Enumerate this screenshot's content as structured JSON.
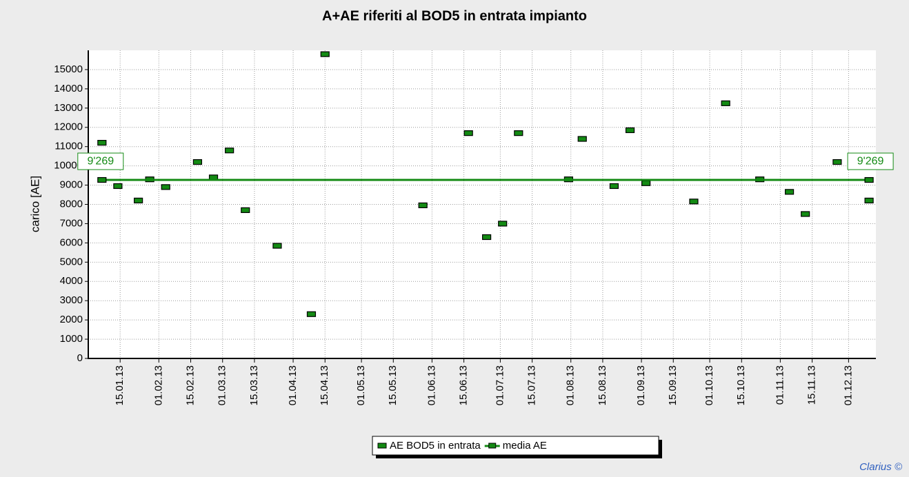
{
  "chart_data": {
    "type": "scatter",
    "title": "A+AE riferiti al BOD5 in entrata impianto",
    "y_label": "carico [AE]",
    "credit": "Clarius ©",
    "xlim": [
      "01.01.13",
      "13.12.13"
    ],
    "xticks": [
      "15.01.13",
      "01.02.13",
      "15.02.13",
      "01.03.13",
      "15.03.13",
      "01.04.13",
      "15.04.13",
      "01.05.13",
      "15.05.13",
      "01.06.13",
      "15.06.13",
      "01.07.13",
      "15.07.13",
      "01.08.13",
      "15.08.13",
      "01.09.13",
      "15.09.13",
      "01.10.13",
      "15.10.13",
      "01.11.13",
      "15.11.13",
      "01.12.13"
    ],
    "ylim": [
      0,
      16000
    ],
    "yticks": [
      0,
      1000,
      2000,
      3000,
      4000,
      5000,
      6000,
      7000,
      8000,
      9000,
      10000,
      11000,
      12000,
      13000,
      14000,
      15000
    ],
    "grid": true,
    "legend": "bottom",
    "series": [
      {
        "name": "AE BOD5 in entrata",
        "color": "#138a13",
        "mode": "markers",
        "x": [
          "07.01.13",
          "14.01.13",
          "23.01.13",
          "28.01.13",
          "04.02.13",
          "18.02.13",
          "25.02.13",
          "04.03.13",
          "11.03.13",
          "25.03.13",
          "09.04.13",
          "15.04.13",
          "28.05.13",
          "17.06.13",
          "25.06.13",
          "02.07.13",
          "09.07.13",
          "31.07.13",
          "06.08.13",
          "20.08.13",
          "27.08.13",
          "03.09.13",
          "24.09.13",
          "08.10.13",
          "23.10.13",
          "05.11.13",
          "12.11.13",
          "26.11.13",
          "10.12.13"
        ],
        "values": [
          11200,
          8950,
          8200,
          9300,
          8900,
          10200,
          9400,
          10800,
          7700,
          5850,
          2300,
          15800,
          7950,
          11700,
          6300,
          7000,
          11700,
          9300,
          11400,
          8950,
          11850,
          9100,
          8150,
          13250,
          9300,
          8650,
          7500,
          10200,
          8200
        ]
      },
      {
        "name": "media AE",
        "color": "#138a13",
        "mode": "line",
        "x": [
          "07.01.13",
          "10.12.13"
        ],
        "values": [
          9269,
          9269
        ],
        "value_labels": [
          "9'269",
          "9'269"
        ]
      }
    ]
  }
}
